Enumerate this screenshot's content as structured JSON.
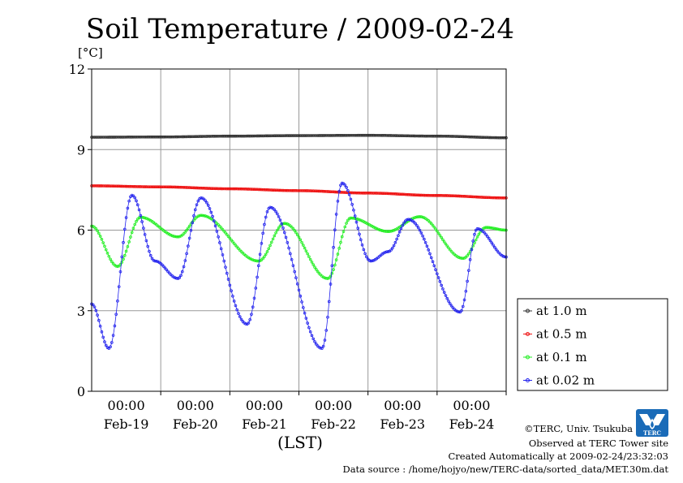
{
  "chart_data": {
    "type": "line",
    "title": "Soil Temperature / 2009-02-24",
    "ylabel": "[°C]",
    "xlabel": "(LST)",
    "ylim": [
      0,
      12
    ],
    "yticks": [
      "0",
      "3",
      "6",
      "9",
      "12"
    ],
    "xlim": [
      0,
      144
    ],
    "x_gridlines": [
      0,
      24,
      48,
      72,
      96,
      120,
      144
    ],
    "x_ticks": [
      {
        "x": 24,
        "time": "00:00",
        "date": "Feb-19"
      },
      {
        "x": 48,
        "time": "00:00",
        "date": "Feb-20"
      },
      {
        "x": 72,
        "time": "00:00",
        "date": "Feb-21"
      },
      {
        "x": 96,
        "time": "00:00",
        "date": "Feb-22"
      },
      {
        "x": 120,
        "time": "00:00",
        "date": "Feb-23"
      },
      {
        "x": 144,
        "time": "00:00",
        "date": "Feb-24"
      }
    ],
    "x_unit": "hours from Feb-18 00:00 LST (axis spans Feb-18 00:00 to Feb-24 24:00)",
    "series": [
      {
        "name": "at 1.0 m",
        "color": "#333333",
        "points": [
          [
            0,
            9.46
          ],
          [
            24,
            9.47
          ],
          [
            48,
            9.5
          ],
          [
            72,
            9.52
          ],
          [
            96,
            9.53
          ],
          [
            120,
            9.5
          ],
          [
            144,
            9.44
          ]
        ]
      },
      {
        "name": "at 0.5 m",
        "color": "#ee1111",
        "points": [
          [
            0,
            7.65
          ],
          [
            24,
            7.61
          ],
          [
            48,
            7.54
          ],
          [
            72,
            7.47
          ],
          [
            96,
            7.38
          ],
          [
            120,
            7.29
          ],
          [
            144,
            7.2
          ]
        ]
      },
      {
        "name": "at 0.1 m",
        "color": "#22ee22",
        "points": [
          [
            0,
            6.15
          ],
          [
            9,
            4.65
          ],
          [
            17,
            6.48
          ],
          [
            30,
            5.75
          ],
          [
            38,
            6.55
          ],
          [
            58,
            4.85
          ],
          [
            67,
            6.25
          ],
          [
            82,
            4.2
          ],
          [
            90,
            6.45
          ],
          [
            103,
            5.95
          ],
          [
            114,
            6.5
          ],
          [
            129,
            4.95
          ],
          [
            137,
            6.1
          ],
          [
            144,
            6.0
          ]
        ]
      },
      {
        "name": "at 0.02 m",
        "color": "#2222ee",
        "points": [
          [
            0,
            3.25
          ],
          [
            6,
            1.6
          ],
          [
            14,
            7.3
          ],
          [
            22,
            4.85
          ],
          [
            30,
            4.2
          ],
          [
            38,
            7.2
          ],
          [
            54,
            2.5
          ],
          [
            62,
            6.85
          ],
          [
            80,
            1.6
          ],
          [
            87,
            7.75
          ],
          [
            97,
            4.85
          ],
          [
            103,
            5.2
          ],
          [
            110,
            6.4
          ],
          [
            128,
            2.95
          ],
          [
            134,
            6.05
          ],
          [
            144,
            5.0
          ]
        ]
      }
    ]
  },
  "legend": {
    "position": "right",
    "entries": [
      "at 1.0 m",
      "at 0.5 m",
      "at 0.1 m",
      "at 0.02 m"
    ]
  },
  "logo": {
    "text": "TERC"
  },
  "footer": {
    "copyright": "©TERC, Univ. Tsukuba",
    "site": "Observed at TERC Tower site",
    "created": "Created Automatically at 2009-02-24/23:32:03",
    "source": "Data source : /home/hojyo/new/TERC-data/sorted_data/MET.30m.dat"
  }
}
